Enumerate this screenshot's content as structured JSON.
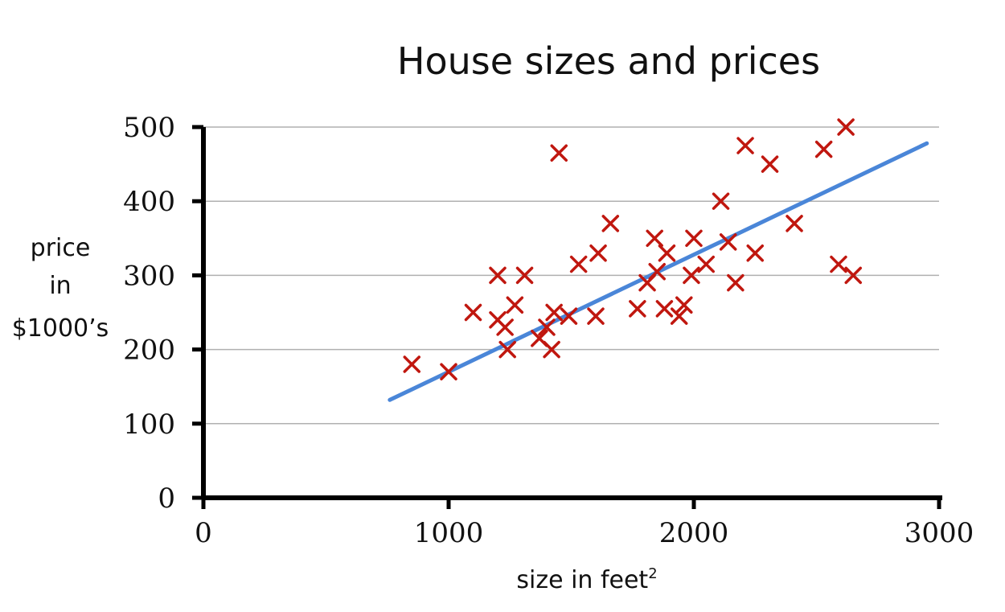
{
  "chart_data": {
    "type": "scatter",
    "title": "House sizes and prices",
    "xlabel": "size in feet",
    "xlabel_superscript": "2",
    "ylabel_lines": [
      "price",
      "in",
      "$1000’s"
    ],
    "xlim": [
      0,
      3000
    ],
    "ylim": [
      0,
      500
    ],
    "x_ticks": [
      0,
      1000,
      2000,
      3000
    ],
    "y_ticks": [
      0,
      100,
      200,
      300,
      400,
      500
    ],
    "grid": "horizontal",
    "points": [
      {
        "x": 850,
        "y": 180
      },
      {
        "x": 1000,
        "y": 170
      },
      {
        "x": 1100,
        "y": 250
      },
      {
        "x": 1200,
        "y": 300
      },
      {
        "x": 1200,
        "y": 240
      },
      {
        "x": 1230,
        "y": 230
      },
      {
        "x": 1240,
        "y": 200
      },
      {
        "x": 1270,
        "y": 260
      },
      {
        "x": 1310,
        "y": 300
      },
      {
        "x": 1370,
        "y": 215
      },
      {
        "x": 1400,
        "y": 230
      },
      {
        "x": 1420,
        "y": 200
      },
      {
        "x": 1430,
        "y": 250
      },
      {
        "x": 1450,
        "y": 465
      },
      {
        "x": 1490,
        "y": 245
      },
      {
        "x": 1530,
        "y": 315
      },
      {
        "x": 1600,
        "y": 245
      },
      {
        "x": 1610,
        "y": 330
      },
      {
        "x": 1660,
        "y": 370
      },
      {
        "x": 1770,
        "y": 255
      },
      {
        "x": 1810,
        "y": 290
      },
      {
        "x": 1840,
        "y": 350
      },
      {
        "x": 1850,
        "y": 305
      },
      {
        "x": 1880,
        "y": 255
      },
      {
        "x": 1890,
        "y": 330
      },
      {
        "x": 1940,
        "y": 245
      },
      {
        "x": 1960,
        "y": 260
      },
      {
        "x": 1990,
        "y": 300
      },
      {
        "x": 2000,
        "y": 350
      },
      {
        "x": 2050,
        "y": 315
      },
      {
        "x": 2110,
        "y": 400
      },
      {
        "x": 2140,
        "y": 345
      },
      {
        "x": 2170,
        "y": 290
      },
      {
        "x": 2210,
        "y": 475
      },
      {
        "x": 2250,
        "y": 330
      },
      {
        "x": 2310,
        "y": 450
      },
      {
        "x": 2410,
        "y": 370
      },
      {
        "x": 2530,
        "y": 470
      },
      {
        "x": 2590,
        "y": 315
      },
      {
        "x": 2620,
        "y": 500
      },
      {
        "x": 2650,
        "y": 300
      }
    ],
    "fit_line": {
      "x": [
        760,
        2950
      ],
      "y": [
        132,
        478
      ]
    },
    "colors": {
      "points": "#c0170f",
      "fit_line": "#4a86d8",
      "axes": "#000000",
      "grid": "#b0b0b0"
    }
  }
}
